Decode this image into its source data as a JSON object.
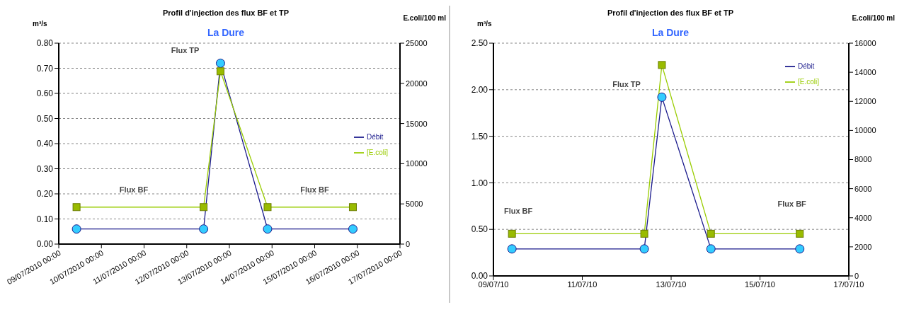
{
  "chart_data": [
    {
      "type": "line",
      "title": "Profil d'injection des flux BF  et TP",
      "subtitle": "La Dure",
      "ylabel": "m³/s",
      "y2label": "E.coli/100 ml",
      "x": [
        "2010-07-09T10:00",
        "2010-07-12T09:30",
        "2010-07-12T19:00",
        "2010-07-13T21:30",
        "2010-07-15T21:30"
      ],
      "series": [
        {
          "name": "Débit",
          "color": "#1a1a8c",
          "marker": "circle",
          "values": [
            0.06,
            0.06,
            0.72,
            0.06,
            0.06
          ]
        },
        {
          "name": "[E.coli]",
          "color": "#99cc00",
          "marker": "square",
          "axis": "y2",
          "values": [
            4600,
            4600,
            21500,
            4600,
            4600
          ]
        }
      ],
      "xlim": [
        "2010-07-09T00:00",
        "2010-07-17T00:00"
      ],
      "xticks": [
        {
          "value": "2010-07-09T00:00",
          "label": "09/07/2010 00:00"
        },
        {
          "value": "2010-07-10T00:00",
          "label": "10/07/2010 00:00"
        },
        {
          "value": "2010-07-11T00:00",
          "label": "11/07/2010 00:00"
        },
        {
          "value": "2010-07-12T00:00",
          "label": "12/07/2010 00:00"
        },
        {
          "value": "2010-07-13T00:00",
          "label": "13/07/2010 00:00"
        },
        {
          "value": "2010-07-14T00:00",
          "label": "14/07/2010 00:00"
        },
        {
          "value": "2010-07-15T00:00",
          "label": "15/07/2010 00:00"
        },
        {
          "value": "2010-07-16T00:00",
          "label": "16/07/2010 00:00"
        },
        {
          "value": "2010-07-17T00:00",
          "label": "17/07/2010 00:00"
        }
      ],
      "ylim": [
        0,
        0.8
      ],
      "yticks": [
        {
          "value": 0,
          "label": "0.00"
        },
        {
          "value": 0.1,
          "label": "0.10"
        },
        {
          "value": 0.2,
          "label": "0.20"
        },
        {
          "value": 0.3,
          "label": "0.30"
        },
        {
          "value": 0.4,
          "label": "0.40"
        },
        {
          "value": 0.5,
          "label": "0.50"
        },
        {
          "value": 0.6,
          "label": "0.60"
        },
        {
          "value": 0.7,
          "label": "0.70"
        },
        {
          "value": 0.8,
          "label": "0.80"
        }
      ],
      "y2lim": [
        0,
        25000
      ],
      "y2ticks": [
        0,
        5000,
        10000,
        15000,
        20000,
        25000
      ],
      "annotations": [
        {
          "text": "Flux TP",
          "x": "2010-07-12T19:00",
          "y": 0.72
        },
        "Flux BF",
        "Flux BF"
      ],
      "grid": "y",
      "line_style": "solid",
      "legend": "right"
    },
    {
      "type": "line",
      "title": "Profil d'injection des flux BF et TP",
      "subtitle": "La Dure",
      "ylabel": "m³/s",
      "y2label": "E.coli/100 ml",
      "x": [
        "2010-07-09T10:00",
        "2010-07-12T09:30",
        "2010-07-12T19:00",
        "2010-07-13T21:30",
        "2010-07-15T21:30"
      ],
      "series": [
        {
          "name": "Débit",
          "color": "#1a1a8c",
          "marker": "circle",
          "values": [
            0.29,
            0.29,
            1.92,
            0.29,
            0.29
          ]
        },
        {
          "name": "[E.coli]",
          "color": "#99cc00",
          "marker": "square",
          "axis": "y2",
          "values": [
            2900,
            2900,
            14500,
            2900,
            2900
          ]
        }
      ],
      "xlim": [
        "2010-07-09T00:00",
        "2010-07-17T00:00"
      ],
      "xticks": [
        {
          "value": "2010-07-09T00:00",
          "label": "09/07/10"
        },
        {
          "value": "2010-07-11T00:00",
          "label": "11/07/10"
        },
        {
          "value": "2010-07-13T00:00",
          "label": "13/07/10"
        },
        {
          "value": "2010-07-15T00:00",
          "label": "15/07/10"
        },
        {
          "value": "2010-07-17T00:00",
          "label": "17/07/10"
        }
      ],
      "ylim": [
        0,
        2.5
      ],
      "yticks": [
        {
          "value": 0,
          "label": "0.00"
        },
        {
          "value": 0.5,
          "label": "0.50"
        },
        {
          "value": 1,
          "label": "1.00"
        },
        {
          "value": 1.5,
          "label": "1.50"
        },
        {
          "value": 2,
          "label": "2.00"
        },
        {
          "value": 2.5,
          "label": "2.50"
        }
      ],
      "y2lim": [
        0,
        16000
      ],
      "y2ticks": [
        0,
        2000,
        4000,
        6000,
        8000,
        10000,
        12000,
        14000,
        16000
      ],
      "annotations": [
        {
          "text": "Flux TP",
          "x": "2010-07-12T19:00",
          "y": 1.92
        },
        "Flux BF",
        "Flux BF"
      ],
      "grid": "y",
      "line_style": "solid",
      "legend": "top right"
    }
  ]
}
